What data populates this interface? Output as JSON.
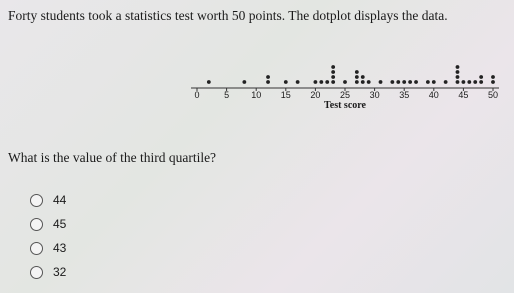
{
  "intro": "Forty students took a statistics test worth 50 points. The dotplot displays the data.",
  "chart_data": {
    "type": "dotplot",
    "xlabel": "Test score",
    "xlim": [
      0,
      50
    ],
    "xticks": [
      0,
      5,
      10,
      15,
      20,
      25,
      30,
      35,
      40,
      45,
      50
    ],
    "values": [
      2,
      8,
      12,
      12,
      15,
      17,
      20,
      21,
      22,
      23,
      23,
      23,
      23,
      25,
      27,
      27,
      27,
      28,
      28,
      29,
      31,
      33,
      34,
      35,
      36,
      37,
      39,
      40,
      42,
      44,
      44,
      44,
      44,
      45,
      46,
      47,
      48,
      48,
      50,
      50
    ]
  },
  "question": "What is the value of the third quartile?",
  "options": [
    "44",
    "45",
    "43",
    "32"
  ]
}
